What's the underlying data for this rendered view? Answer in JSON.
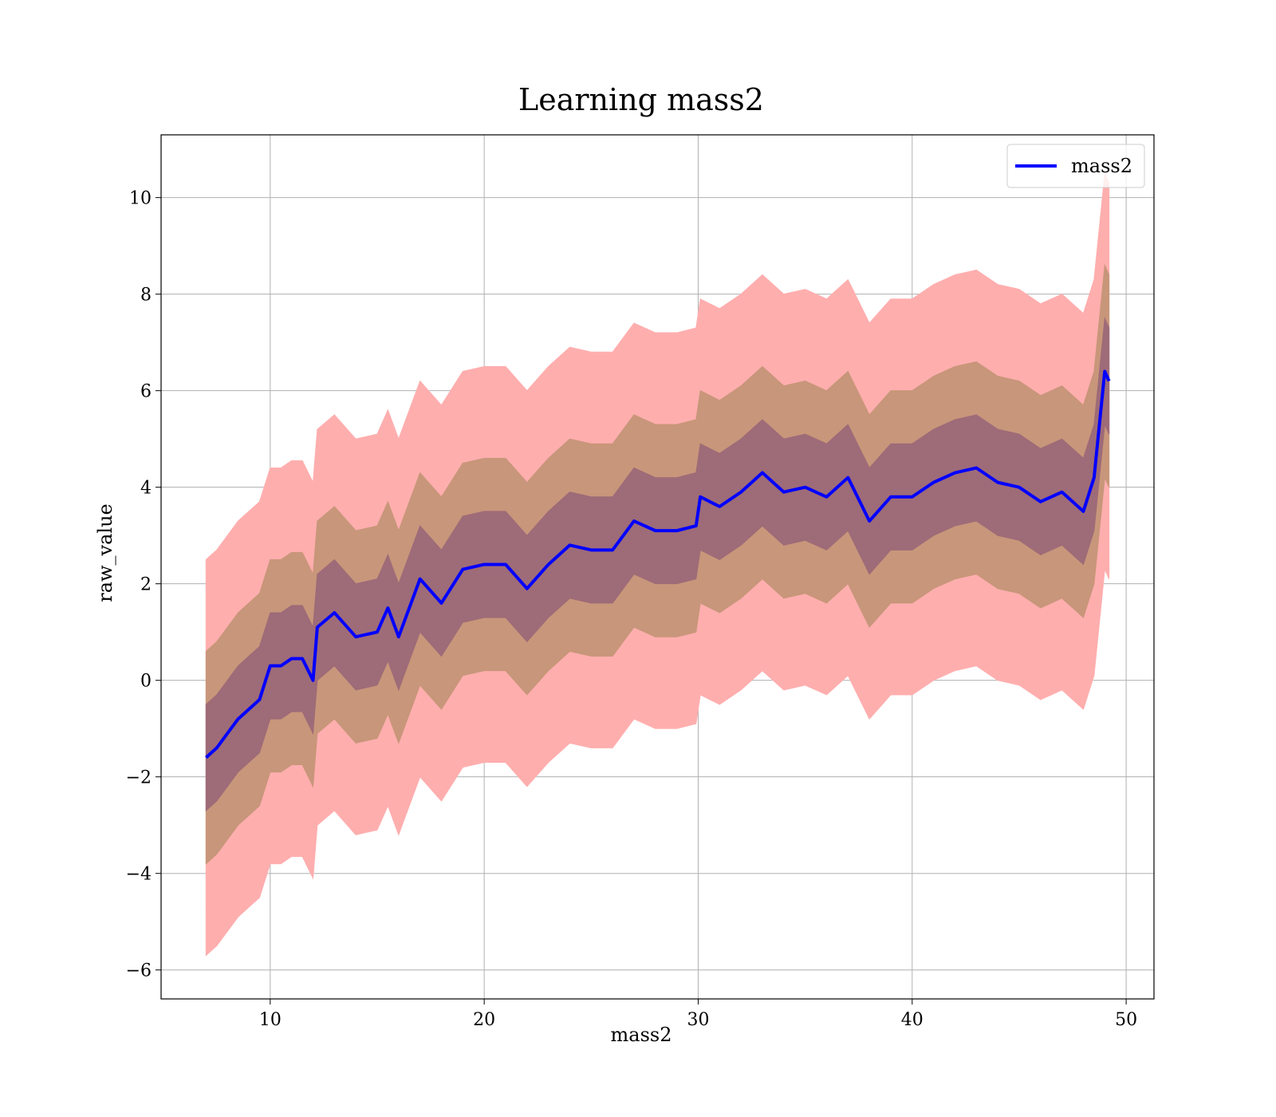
{
  "chart_data": {
    "type": "line",
    "title": "Learning mass2",
    "xlabel": "mass2",
    "ylabel": "raw_value",
    "x": [
      7,
      7.5,
      8,
      8.5,
      9,
      9.5,
      10,
      10.5,
      11,
      11.5,
      12,
      12.2,
      13,
      14,
      15,
      15.5,
      16,
      17,
      18,
      19,
      20,
      21,
      22,
      23,
      24,
      25,
      26,
      27,
      28,
      29,
      29.9,
      30.1,
      31,
      32,
      33,
      34,
      35,
      36,
      37,
      38,
      39,
      40,
      41,
      42,
      43,
      44,
      45,
      46,
      47,
      48,
      48.5,
      49,
      49.2
    ],
    "series": [
      {
        "name": "mass2",
        "color": "#0000ff",
        "values": [
          -1.6,
          -1.4,
          -1.1,
          -0.8,
          -0.6,
          -0.4,
          0.3,
          0.3,
          0.45,
          0.45,
          0,
          1.1,
          1.4,
          0.9,
          1.0,
          1.5,
          0.9,
          2.1,
          1.6,
          2.3,
          2.4,
          2.4,
          1.9,
          2.4,
          2.8,
          2.7,
          2.7,
          3.3,
          3.1,
          3.1,
          3.2,
          3.8,
          3.6,
          3.9,
          4.3,
          3.9,
          4.0,
          3.8,
          4.2,
          3.3,
          3.8,
          3.8,
          4.1,
          4.3,
          4.4,
          4.1,
          4.0,
          3.7,
          3.9,
          3.5,
          4.2,
          6.4,
          6.2
        ]
      }
    ],
    "bands": [
      {
        "color": "#ffaeae",
        "lower": [
          -5.7,
          -5.5,
          -5.2,
          -4.9,
          -4.7,
          -4.5,
          -3.8,
          -3.8,
          -3.65,
          -3.65,
          -4.1,
          -3.0,
          -2.7,
          -3.2,
          -3.1,
          -2.6,
          -3.2,
          -2.0,
          -2.5,
          -1.8,
          -1.7,
          -1.7,
          -2.2,
          -1.7,
          -1.3,
          -1.4,
          -1.4,
          -0.8,
          -1.0,
          -1.0,
          -0.9,
          -0.3,
          -0.5,
          -0.2,
          0.2,
          -0.2,
          -0.1,
          -0.3,
          0.1,
          -0.8,
          -0.3,
          -0.3,
          0,
          0.2,
          0.3,
          0,
          -0.1,
          -0.4,
          -0.2,
          -0.6,
          0.1,
          2.3,
          2.1
        ],
        "upper": [
          2.5,
          2.7,
          3.0,
          3.3,
          3.5,
          3.7,
          4.4,
          4.4,
          4.55,
          4.55,
          4.1,
          5.2,
          5.5,
          5.0,
          5.1,
          5.6,
          5.0,
          6.2,
          5.7,
          6.4,
          6.5,
          6.5,
          6.0,
          6.5,
          6.9,
          6.8,
          6.8,
          7.4,
          7.2,
          7.2,
          7.3,
          7.9,
          7.7,
          8.0,
          8.4,
          8.0,
          8.1,
          7.9,
          8.3,
          7.4,
          7.9,
          7.9,
          8.2,
          8.4,
          8.5,
          8.2,
          8.1,
          7.8,
          8.0,
          7.6,
          8.3,
          10.5,
          10.3
        ]
      },
      {
        "color": "#c8967a",
        "lower": [
          -3.8,
          -3.6,
          -3.3,
          -3.0,
          -2.8,
          -2.6,
          -1.9,
          -1.9,
          -1.75,
          -1.75,
          -2.2,
          -1.1,
          -0.8,
          -1.3,
          -1.2,
          -0.7,
          -1.3,
          -0.1,
          -0.6,
          0.1,
          0.2,
          0.2,
          -0.3,
          0.2,
          0.6,
          0.5,
          0.5,
          1.1,
          0.9,
          0.9,
          1.0,
          1.6,
          1.4,
          1.7,
          2.1,
          1.7,
          1.8,
          1.6,
          2.0,
          1.1,
          1.6,
          1.6,
          1.9,
          2.1,
          2.2,
          1.9,
          1.8,
          1.5,
          1.7,
          1.3,
          2.0,
          4.2,
          4.0
        ],
        "upper": [
          0.6,
          0.8,
          1.1,
          1.4,
          1.6,
          1.8,
          2.5,
          2.5,
          2.65,
          2.65,
          2.2,
          3.3,
          3.6,
          3.1,
          3.2,
          3.7,
          3.1,
          4.3,
          3.8,
          4.5,
          4.6,
          4.6,
          4.1,
          4.6,
          5.0,
          4.9,
          4.9,
          5.5,
          5.3,
          5.3,
          5.4,
          6.0,
          5.8,
          6.1,
          6.5,
          6.1,
          6.2,
          6.0,
          6.4,
          5.5,
          6.0,
          6.0,
          6.3,
          6.5,
          6.6,
          6.3,
          6.2,
          5.9,
          6.1,
          5.7,
          6.4,
          8.6,
          8.4
        ]
      },
      {
        "color": "#9e6b78",
        "lower": [
          -2.7,
          -2.5,
          -2.2,
          -1.9,
          -1.7,
          -1.5,
          -0.8,
          -0.8,
          -0.65,
          -0.65,
          -1.1,
          0,
          0.3,
          -0.2,
          -0.1,
          0.4,
          -0.2,
          1.0,
          0.5,
          1.2,
          1.3,
          1.3,
          0.8,
          1.3,
          1.7,
          1.6,
          1.6,
          2.2,
          2.0,
          2.0,
          2.1,
          2.7,
          2.5,
          2.8,
          3.2,
          2.8,
          2.9,
          2.7,
          3.1,
          2.2,
          2.7,
          2.7,
          3.0,
          3.2,
          3.3,
          3.0,
          2.9,
          2.6,
          2.8,
          2.4,
          3.1,
          5.3,
          5.1
        ],
        "upper": [
          -0.5,
          -0.3,
          0,
          0.3,
          0.5,
          0.7,
          1.4,
          1.4,
          1.55,
          1.55,
          1.1,
          2.2,
          2.5,
          2.0,
          2.1,
          2.6,
          2.0,
          3.2,
          2.7,
          3.4,
          3.5,
          3.5,
          3.0,
          3.5,
          3.9,
          3.8,
          3.8,
          4.4,
          4.2,
          4.2,
          4.3,
          4.9,
          4.7,
          5.0,
          5.4,
          5.0,
          5.1,
          4.9,
          5.3,
          4.4,
          4.9,
          4.9,
          5.2,
          5.4,
          5.5,
          5.2,
          5.1,
          4.8,
          5.0,
          4.6,
          5.3,
          7.5,
          7.3
        ]
      }
    ],
    "xlim": [
      4.9,
      51.3
    ],
    "ylim": [
      -6.6,
      11.3
    ],
    "xticks": [
      10,
      20,
      30,
      40,
      50
    ],
    "yticks": [
      {
        "value": -6,
        "label": "−6"
      },
      {
        "value": -4,
        "label": "−4"
      },
      {
        "value": -2,
        "label": "−2"
      },
      0,
      2,
      4,
      6,
      8,
      10
    ],
    "grid": true,
    "legend": "upper right"
  }
}
